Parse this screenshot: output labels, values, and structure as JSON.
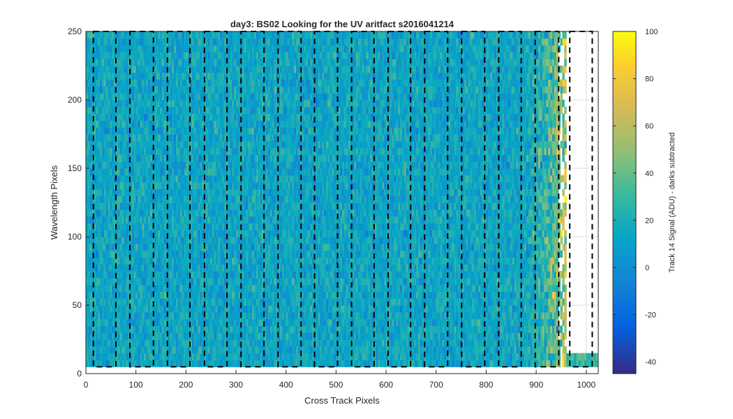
{
  "chart_data": {
    "type": "heatmap",
    "title": "day3: BS02  Looking for the UV aritfact  s2016041214",
    "xlabel": "Cross Track Pixels",
    "ylabel": "Wavelength Pixels",
    "xlim": [
      0,
      1024
    ],
    "ylim": [
      0,
      250
    ],
    "xticks": [
      0,
      100,
      200,
      300,
      400,
      500,
      600,
      700,
      800,
      900,
      1000
    ],
    "yticks": [
      0,
      50,
      100,
      150,
      200,
      250
    ],
    "grid": true,
    "colorbar": {
      "label": "Track 14 Signal (ADU) - darks subtracted",
      "range": [
        -45,
        100
      ],
      "ticks": [
        -40,
        -20,
        0,
        20,
        40,
        60,
        80,
        100
      ],
      "colormap": "parula",
      "colors": [
        "#352a87",
        "#0363e1",
        "#1485d4",
        "#06a7c6",
        "#38b99e",
        "#92bf73",
        "#d9ba56",
        "#fcce2e",
        "#f9fb0e"
      ]
    },
    "signal_description": {
      "illuminated_x_range": [
        0,
        960
      ],
      "baseline_signal": 10,
      "rising_signal_x_range": [
        860,
        960
      ],
      "edge_signal_max": 55,
      "artifact_band_x_range": [
        960,
        1024
      ],
      "artifact_band_y_range": [
        5,
        12
      ],
      "artifact_band_signal": 25
    },
    "dashed_boxes": [
      {
        "x": [
          15,
          60
        ]
      },
      {
        "x": [
          88,
          135
        ]
      },
      {
        "x": [
          163,
          208
        ]
      },
      {
        "x": [
          237,
          282
        ]
      },
      {
        "x": [
          310,
          356
        ]
      },
      {
        "x": [
          384,
          430
        ]
      },
      {
        "x": [
          457,
          503
        ]
      },
      {
        "x": [
          531,
          576
        ]
      },
      {
        "x": [
          604,
          649
        ]
      },
      {
        "x": [
          677,
          723
        ]
      },
      {
        "x": [
          751,
          797
        ]
      },
      {
        "x": [
          825,
          870
        ]
      },
      {
        "x": [
          898,
          945
        ]
      },
      {
        "x": [
          967,
          1012
        ]
      }
    ],
    "dashed_box_y": [
      5,
      250
    ]
  }
}
